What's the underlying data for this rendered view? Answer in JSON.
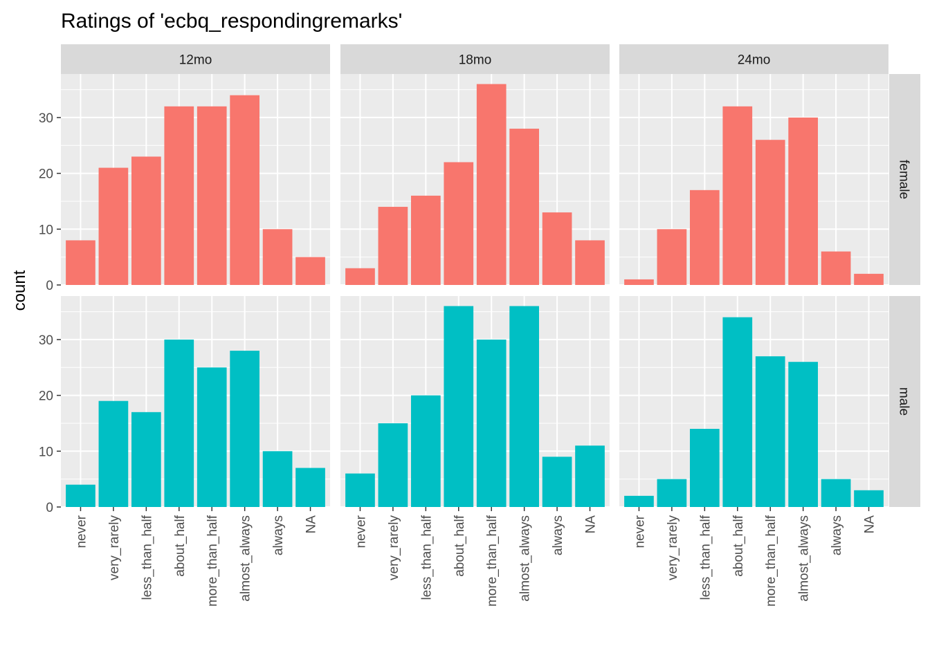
{
  "chart_data": {
    "type": "bar",
    "title": "Ratings of 'ecbq_respondingremarks'",
    "xlabel": "",
    "ylabel": "count",
    "categories": [
      "never",
      "very_rarely",
      "less_than_half",
      "about_half",
      "more_than_half",
      "almost_always",
      "always",
      "NA"
    ],
    "column_facets": [
      "12mo",
      "18mo",
      "24mo"
    ],
    "row_facets": [
      "female",
      "male"
    ],
    "yticks": [
      0,
      10,
      20,
      30
    ],
    "ylim": [
      0,
      37.8
    ],
    "grid": true,
    "fill_colors": {
      "female": "#F8766D",
      "male": "#00BFC4"
    },
    "panel_background": "#EBEBEB",
    "strip_background": "#D9D9D9",
    "panels": [
      {
        "row": "female",
        "col": "12mo",
        "values": [
          8,
          21,
          23,
          32,
          32,
          34,
          10,
          5
        ]
      },
      {
        "row": "female",
        "col": "18mo",
        "values": [
          3,
          14,
          16,
          22,
          36,
          28,
          13,
          8
        ]
      },
      {
        "row": "female",
        "col": "24mo",
        "values": [
          1,
          10,
          17,
          32,
          26,
          30,
          6,
          2
        ]
      },
      {
        "row": "male",
        "col": "12mo",
        "values": [
          4,
          19,
          17,
          30,
          25,
          28,
          10,
          7
        ]
      },
      {
        "row": "male",
        "col": "18mo",
        "values": [
          6,
          15,
          20,
          36,
          30,
          36,
          9,
          11
        ]
      },
      {
        "row": "male",
        "col": "24mo",
        "values": [
          2,
          5,
          14,
          34,
          27,
          26,
          5,
          3
        ]
      }
    ]
  }
}
